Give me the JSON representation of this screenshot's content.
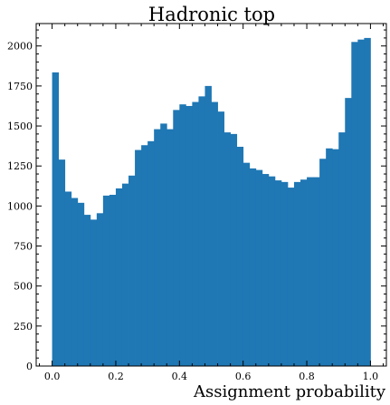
{
  "chart_data": {
    "type": "bar",
    "subtype": "histogram",
    "title": "Hadronic top",
    "xlabel": "Assignment probability",
    "ylabel": "",
    "xlim": [
      -0.05,
      1.05
    ],
    "ylim": [
      0,
      2140
    ],
    "bin_width": 0.02,
    "bin_start": 0.0,
    "color": "#1f77b4",
    "grid": false,
    "xticks": [
      0.0,
      0.2,
      0.4,
      0.6,
      0.8,
      1.0
    ],
    "xtick_labels": [
      "0.0",
      "0.2",
      "0.4",
      "0.6",
      "0.8",
      "1.0"
    ],
    "yticks": [
      0,
      250,
      500,
      750,
      1000,
      1250,
      1500,
      1750,
      2000
    ],
    "ytick_labels": [
      "0",
      "250",
      "500",
      "750",
      "1000",
      "1250",
      "1500",
      "1750",
      "2000"
    ],
    "values": [
      1835,
      1290,
      1090,
      1050,
      1020,
      945,
      915,
      955,
      1065,
      1070,
      1110,
      1140,
      1190,
      1350,
      1380,
      1405,
      1480,
      1515,
      1480,
      1600,
      1635,
      1625,
      1650,
      1685,
      1750,
      1650,
      1590,
      1460,
      1450,
      1370,
      1270,
      1235,
      1225,
      1200,
      1185,
      1160,
      1150,
      1115,
      1150,
      1165,
      1180,
      1180,
      1295,
      1360,
      1355,
      1460,
      1675,
      2025,
      2040,
      2050
    ]
  }
}
